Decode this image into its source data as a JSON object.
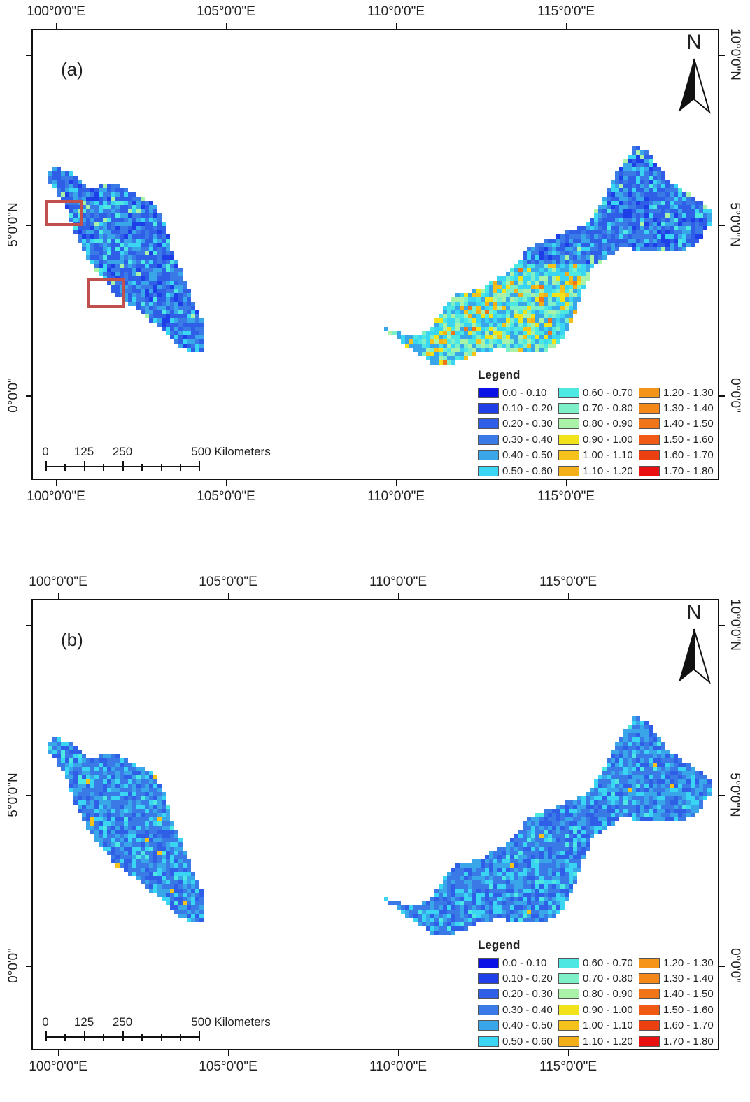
{
  "colors": {
    "ramp": [
      "#0a12e6",
      "#1e3fe8",
      "#2f5fe6",
      "#3a7ae6",
      "#3aa6ea",
      "#3ad5f2",
      "#4de8e2",
      "#7ef0c8",
      "#aaf2a8",
      "#f2e21a",
      "#f4c21a",
      "#f4ae18",
      "#f49418",
      "#f48818",
      "#f07418",
      "#f05a14",
      "#ec4010",
      "#e81010"
    ],
    "highlight_box": "#c0504d"
  },
  "panels": [
    {
      "label": "(a)",
      "x_ticks": [
        "100°0'0\"E",
        "105°0'0\"E",
        "110°0'0\"E",
        "115°0'0\"E"
      ],
      "y_ticks": [
        "10°0'0\"N",
        "5°0'0\"N",
        "0°0'0\""
      ],
      "north": "N",
      "legend_title": "Legend",
      "legend": [
        "0.0 - 0.10",
        "0.10 - 0.20",
        "0.20 - 0.30",
        "0.30 - 0.40",
        "0.40 - 0.50",
        "0.50 - 0.60",
        "0.60 - 0.70",
        "0.70 - 0.80",
        "0.80 - 0.90",
        "0.90 - 1.00",
        "1.00 - 1.10",
        "1.10 - 1.20",
        "1.20 - 1.30",
        "1.30 - 1.40",
        "1.40 - 1.50",
        "1.50 - 1.60",
        "1.60 - 1.70",
        "1.70 - 1.80"
      ],
      "scale": [
        "0",
        "125",
        "250",
        "500 Kilometers"
      ],
      "highlight_boxes": 2
    },
    {
      "label": "(b)",
      "x_ticks": [
        "100°0'0\"E",
        "105°0'0\"E",
        "110°0'0\"E",
        "115°0'0\"E"
      ],
      "y_ticks": [
        "10°0'0\"N",
        "5°0'0\"N",
        "0°0'0\""
      ],
      "north": "N",
      "legend_title": "Legend",
      "legend": [
        "0.0 - 0.10",
        "0.10 - 0.20",
        "0.20 - 0.30",
        "0.30 - 0.40",
        "0.40 - 0.50",
        "0.50 - 0.60",
        "0.60 - 0.70",
        "0.70 - 0.80",
        "0.80 - 0.90",
        "0.90 - 1.00",
        "1.00 - 1.10",
        "1.10 - 1.20",
        "1.20 - 1.30",
        "1.30 - 1.40",
        "1.40 - 1.50",
        "1.50 - 1.60",
        "1.60 - 1.70",
        "1.70 - 1.80"
      ],
      "scale": [
        "0",
        "125",
        "250",
        "500 Kilometers"
      ],
      "highlight_boxes": 0
    }
  ]
}
